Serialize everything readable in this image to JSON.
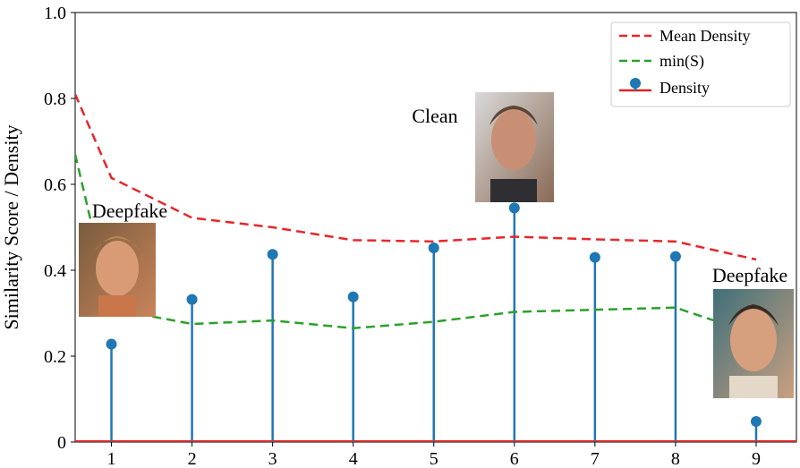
{
  "chart_data": {
    "type": "line",
    "xlabel": "",
    "ylabel": "Similarity Score / Density",
    "xlim": [
      0.55,
      9.5
    ],
    "ylim": [
      0,
      1.0
    ],
    "x_ticks": [
      1,
      2,
      3,
      4,
      5,
      6,
      7,
      8,
      9
    ],
    "y_ticks": [
      0,
      0.2,
      0.4,
      0.6,
      0.8,
      1.0
    ],
    "grid": false,
    "legend_position": "top-right",
    "series": [
      {
        "name": "Mean Density",
        "style": "dashed-line",
        "color": "#e8262b",
        "x": [
          0.55,
          1,
          2,
          3,
          4,
          5,
          6,
          7,
          8,
          9
        ],
        "values": [
          0.81,
          0.615,
          0.522,
          0.5,
          0.47,
          0.467,
          0.478,
          0.472,
          0.467,
          0.425
        ]
      },
      {
        "name": "min(S)",
        "style": "dashed-line",
        "color": "#2ca02c",
        "x": [
          0.55,
          1,
          2,
          3,
          4,
          5,
          6,
          7,
          8,
          9
        ],
        "values": [
          0.67,
          0.31,
          0.275,
          0.283,
          0.265,
          0.28,
          0.303,
          0.308,
          0.313,
          0.25
        ]
      },
      {
        "name": "Density",
        "style": "stem",
        "color": "#1f77b4",
        "baseline_color": "#d62728",
        "x": [
          1,
          2,
          3,
          4,
          5,
          6,
          7,
          8,
          9
        ],
        "values": [
          0.228,
          0.332,
          0.437,
          0.338,
          0.452,
          0.545,
          0.43,
          0.432,
          0.048
        ]
      }
    ],
    "annotations": [
      {
        "label": "Deepfake",
        "x": 1
      },
      {
        "label": "Clean",
        "x": 6
      },
      {
        "label": "Deepfake",
        "x": 9
      }
    ]
  }
}
